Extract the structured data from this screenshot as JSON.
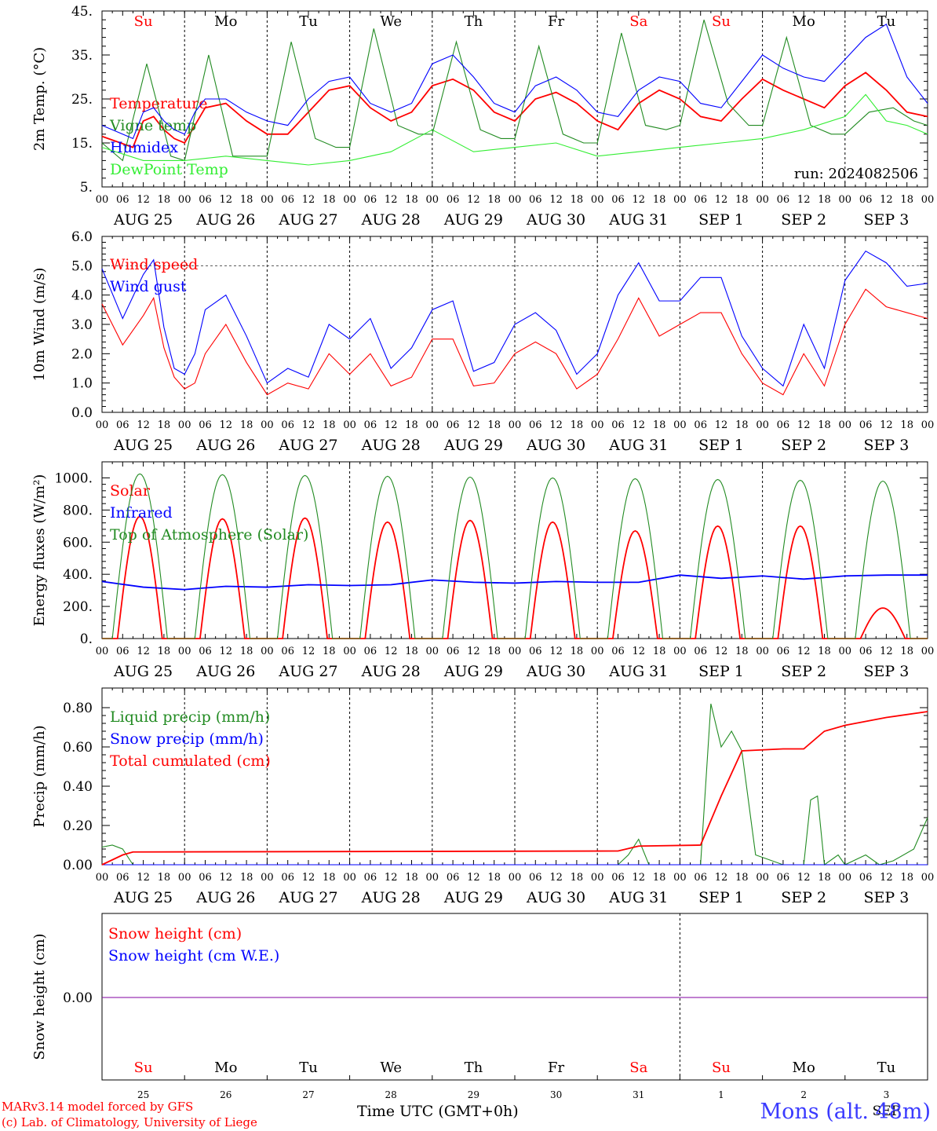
{
  "footer": {
    "credit_line1": "MARv3.14 model forced by GFS",
    "credit_line2": "(c) Lab. of Climatology, University of Liege",
    "xlabel": "Time UTC (GMT+0h)",
    "station": "Mons (alt. 48m)"
  },
  "colors": {
    "red": "#ff0000",
    "darkgreen": "#228b22",
    "blue": "#0000ff",
    "lightgreen": "#33ee33",
    "purple": "#8000a0"
  },
  "day_labels": [
    "Su",
    "Mo",
    "Tu",
    "We",
    "Th",
    "Fr",
    "Sa",
    "Su",
    "Mo",
    "Tu"
  ],
  "day_label_colors": [
    "red",
    "black",
    "black",
    "black",
    "black",
    "black",
    "red",
    "red",
    "black",
    "black"
  ],
  "date_labels": [
    "AUG 25",
    "AUG 26",
    "AUG 27",
    "AUG 28",
    "AUG 29",
    "AUG 30",
    "AUG 31",
    "SEP  1",
    "SEP  2",
    "SEP  3"
  ],
  "hour_ticks": [
    "00",
    "06",
    "12",
    "18"
  ],
  "bottom_day_numbers": [
    "25",
    "26",
    "27",
    "28",
    "29",
    "30",
    "31",
    "1",
    "2",
    "3"
  ],
  "bottom_month_label": "SEP",
  "chart_data": [
    {
      "type": "line",
      "ylabel": "2m Temp. (°C)",
      "ylim": [
        5,
        45
      ],
      "yticks": [
        "5.",
        "15.",
        "25.",
        "35.",
        "45."
      ],
      "annotation": "run: 2024082506",
      "x_unit": "hours from 2024-08-25 00 UTC",
      "series": [
        {
          "name": "Temperature",
          "color": "red",
          "x": [
            0,
            9,
            12,
            15,
            18,
            21,
            24,
            27,
            30,
            36,
            42,
            48,
            54,
            60,
            66,
            72,
            78,
            84,
            90,
            96,
            102,
            108,
            114,
            120,
            126,
            132,
            138,
            144,
            150,
            156,
            162,
            168,
            174,
            180,
            186,
            192,
            198,
            204,
            210,
            216,
            222,
            228,
            234,
            240
          ],
          "y": [
            16.5,
            14,
            20,
            21,
            18,
            16,
            15,
            19,
            23,
            24,
            20,
            17,
            17,
            22,
            27,
            28,
            23,
            20,
            22,
            28,
            29.5,
            27,
            22,
            20,
            25,
            26.5,
            24,
            20,
            18,
            24,
            27,
            25,
            21,
            20,
            25,
            29.5,
            27,
            25,
            23,
            28,
            31,
            27,
            22,
            21
          ]
        },
        {
          "name": "Vigne temp",
          "color": "darkgreen",
          "x": [
            0,
            6,
            13,
            20,
            24,
            31,
            38,
            44,
            48,
            55,
            62,
            68,
            72,
            79,
            86,
            92,
            96,
            103,
            110,
            116,
            120,
            127,
            134,
            140,
            144,
            151,
            158,
            164,
            168,
            175,
            182,
            188,
            192,
            199,
            206,
            212,
            216,
            223,
            230,
            236,
            240
          ],
          "y": [
            15,
            11,
            33,
            12,
            11,
            35,
            12,
            12,
            12,
            38,
            16,
            14,
            14,
            41,
            19,
            17,
            17,
            38,
            18,
            16,
            16,
            37,
            17,
            15,
            15,
            40,
            19,
            18,
            19,
            43,
            24,
            19,
            19,
            39,
            19,
            17,
            17,
            22,
            23,
            20,
            19
          ]
        },
        {
          "name": "Humidex",
          "color": "blue",
          "x": [
            0,
            9,
            12,
            15,
            18,
            21,
            24,
            27,
            30,
            36,
            42,
            48,
            54,
            60,
            66,
            72,
            78,
            84,
            90,
            96,
            102,
            108,
            114,
            120,
            126,
            132,
            138,
            144,
            150,
            156,
            162,
            168,
            174,
            180,
            186,
            192,
            198,
            204,
            210,
            216,
            222,
            228,
            234,
            240
          ],
          "y": [
            19,
            16,
            22,
            23,
            20,
            18,
            17,
            22,
            25,
            25,
            22,
            20,
            19,
            25,
            29,
            30,
            24,
            22,
            24,
            33,
            35,
            30,
            24,
            22,
            28,
            30,
            27,
            22,
            21,
            27,
            30,
            29,
            24,
            23,
            29,
            35,
            32,
            30,
            29,
            34,
            39,
            42,
            30,
            24
          ]
        },
        {
          "name": "DewPoint Temp",
          "color": "lightgreen",
          "x": [
            0,
            12,
            24,
            36,
            48,
            60,
            72,
            84,
            96,
            108,
            120,
            132,
            144,
            156,
            168,
            180,
            192,
            204,
            216,
            222,
            228,
            234,
            240
          ],
          "y": [
            14,
            11,
            11,
            12,
            11,
            10,
            11,
            13,
            18,
            13,
            14,
            15,
            12,
            13,
            14,
            15,
            16,
            18,
            21,
            26,
            20,
            19,
            17
          ]
        }
      ]
    },
    {
      "type": "line",
      "ylabel": "10m Wind (m/s)",
      "ylim": [
        0,
        6
      ],
      "yticks": [
        "0.0",
        "1.0",
        "2.0",
        "3.0",
        "4.0",
        "5.0",
        "6.0"
      ],
      "reference_line": 5,
      "series": [
        {
          "name": "Wind speed",
          "color": "red",
          "x": [
            0,
            6,
            12,
            15,
            18,
            21,
            24,
            27,
            30,
            36,
            42,
            48,
            54,
            60,
            66,
            72,
            78,
            84,
            90,
            96,
            102,
            108,
            114,
            120,
            126,
            132,
            138,
            144,
            150,
            156,
            162,
            168,
            174,
            180,
            186,
            192,
            198,
            204,
            210,
            216,
            222,
            228,
            234,
            240
          ],
          "y": [
            3.7,
            2.3,
            3.3,
            3.9,
            2.2,
            1.2,
            0.8,
            1.0,
            2.0,
            3.0,
            1.7,
            0.6,
            1.0,
            0.8,
            2.0,
            1.3,
            2.0,
            0.9,
            1.2,
            2.5,
            2.5,
            0.9,
            1.0,
            2.0,
            2.4,
            2.0,
            0.8,
            1.3,
            2.5,
            3.9,
            2.6,
            3.0,
            3.4,
            3.4,
            2.0,
            1.0,
            0.6,
            2.0,
            0.9,
            3.0,
            4.2,
            3.6,
            3.4,
            3.2
          ]
        },
        {
          "name": "Wind gust",
          "color": "blue",
          "x": [
            0,
            6,
            12,
            15,
            18,
            21,
            24,
            27,
            30,
            36,
            42,
            48,
            54,
            60,
            66,
            72,
            78,
            84,
            90,
            96,
            102,
            108,
            114,
            120,
            126,
            132,
            138,
            144,
            150,
            156,
            162,
            168,
            174,
            180,
            186,
            192,
            198,
            204,
            210,
            216,
            222,
            228,
            234,
            240
          ],
          "y": [
            4.9,
            3.2,
            4.7,
            5.2,
            2.9,
            1.5,
            1.3,
            2.0,
            3.5,
            4.0,
            2.6,
            1.0,
            1.5,
            1.2,
            3.0,
            2.5,
            3.2,
            1.5,
            2.2,
            3.5,
            3.8,
            1.4,
            1.7,
            3.0,
            3.4,
            2.8,
            1.3,
            2.0,
            4.0,
            5.1,
            3.8,
            3.8,
            4.6,
            4.6,
            2.6,
            1.5,
            0.9,
            3.0,
            1.5,
            4.5,
            5.5,
            5.1,
            4.3,
            4.4
          ]
        }
      ]
    },
    {
      "type": "line",
      "ylabel": "Energy fluxes (W/m²)",
      "ylim": [
        0,
        1100
      ],
      "yticks": [
        "0.",
        "200.",
        "400.",
        "600.",
        "800.",
        "1000."
      ],
      "series": [
        {
          "name": "Solar",
          "peaks": [
            {
              "x": 11,
              "y": 760
            },
            {
              "x": 35,
              "y": 745
            },
            {
              "x": 59,
              "y": 750
            },
            {
              "x": 83,
              "y": 725
            },
            {
              "x": 107,
              "y": 735
            },
            {
              "x": 131,
              "y": 725
            },
            {
              "x": 155,
              "y": 670
            },
            {
              "x": 179,
              "y": 700
            },
            {
              "x": 203,
              "y": 700
            },
            {
              "x": 227,
              "y": 190
            }
          ],
          "color": "red"
        },
        {
          "name": "Infrared",
          "color": "blue",
          "x": [
            0,
            12,
            24,
            36,
            48,
            60,
            72,
            84,
            96,
            108,
            120,
            132,
            144,
            156,
            168,
            180,
            192,
            204,
            216,
            228,
            240
          ],
          "y": [
            355,
            320,
            305,
            325,
            320,
            335,
            330,
            335,
            365,
            350,
            345,
            355,
            350,
            350,
            395,
            375,
            390,
            370,
            390,
            395,
            395
          ]
        },
        {
          "name": "Top of Atmosphere (Solar)",
          "peaks": [
            {
              "x": 11,
              "y": 1025
            },
            {
              "x": 35,
              "y": 1020
            },
            {
              "x": 59,
              "y": 1015
            },
            {
              "x": 83,
              "y": 1010
            },
            {
              "x": 107,
              "y": 1005
            },
            {
              "x": 131,
              "y": 1000
            },
            {
              "x": 155,
              "y": 995
            },
            {
              "x": 179,
              "y": 990
            },
            {
              "x": 203,
              "y": 985
            },
            {
              "x": 227,
              "y": 980
            }
          ],
          "color": "darkgreen"
        }
      ]
    },
    {
      "type": "line",
      "ylabel": "Precip (mm/h)",
      "ylim": [
        0,
        0.9
      ],
      "yticks": [
        "0.00",
        "0.20",
        "0.40",
        "0.60",
        "0.80"
      ],
      "series": [
        {
          "name": "Liquid precip (mm/h)",
          "color": "darkgreen",
          "x": [
            0,
            3,
            6,
            9,
            12,
            150,
            153,
            156,
            159,
            162,
            174,
            177,
            180,
            183,
            186,
            190,
            198,
            204,
            206,
            208,
            210,
            214,
            216,
            222,
            226,
            230,
            236,
            240
          ],
          "y": [
            0.09,
            0.1,
            0.08,
            0,
            0,
            0,
            0.05,
            0.13,
            0,
            0,
            0,
            0.82,
            0.6,
            0.68,
            0.58,
            0.05,
            0,
            0,
            0.33,
            0.35,
            0,
            0.05,
            0,
            0.05,
            0,
            0.02,
            0.08,
            0.24
          ]
        },
        {
          "name": "Snow precip (mm/h)",
          "color": "blue",
          "x": [
            0,
            240
          ],
          "y": [
            0,
            0
          ]
        },
        {
          "name": "Total cumulated (cm)",
          "color": "red",
          "x": [
            0,
            6,
            9,
            150,
            156,
            174,
            180,
            186,
            198,
            204,
            210,
            216,
            228,
            240
          ],
          "y": [
            0,
            0.05,
            0.065,
            0.07,
            0.095,
            0.1,
            0.35,
            0.58,
            0.59,
            0.59,
            0.68,
            0.71,
            0.75,
            0.78
          ]
        }
      ]
    },
    {
      "type": "line",
      "ylabel": "Snow height (cm)",
      "yticks": [
        "0.00"
      ],
      "series": [
        {
          "name": "Snow height (cm)",
          "color": "red",
          "x": [
            0,
            240
          ],
          "y": [
            0,
            0
          ]
        },
        {
          "name": "Snow height (cm W.E.)",
          "color": "blue",
          "x": [
            0,
            240
          ],
          "y": [
            0,
            0
          ]
        }
      ]
    }
  ]
}
